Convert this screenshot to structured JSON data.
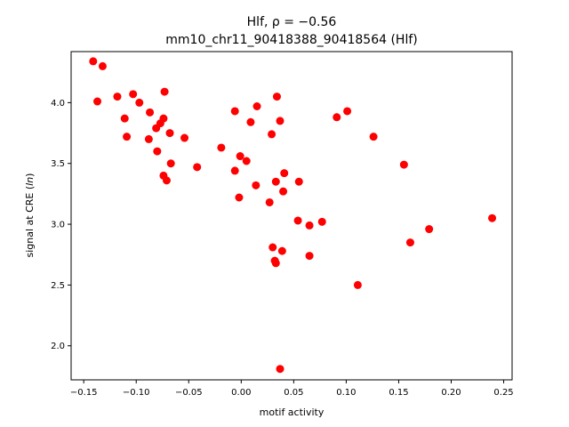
{
  "chart_data": {
    "type": "scatter",
    "title_line1": "Hlf, ρ = −0.56",
    "title_line2": "mm10_chr11_90418388_90418564 (Hlf)",
    "xlabel": "motif activity",
    "ylabel_main": "signal at CRE (",
    "ylabel_italic": "ln",
    "ylabel_end": ")",
    "xlim": [
      -0.162,
      0.258
    ],
    "ylim": [
      1.72,
      4.42
    ],
    "xticks": [
      -0.15,
      -0.1,
      -0.05,
      0.0,
      0.05,
      0.1,
      0.15,
      0.2,
      0.25
    ],
    "xtick_labels": [
      "−0.15",
      "−0.10",
      "−0.05",
      "0.00",
      "0.05",
      "0.10",
      "0.15",
      "0.20",
      "0.25"
    ],
    "yticks": [
      2.0,
      2.5,
      3.0,
      3.5,
      4.0
    ],
    "ytick_labels": [
      "2.0",
      "2.5",
      "3.0",
      "3.5",
      "4.0"
    ],
    "marker_color": "#ff0000",
    "points": [
      {
        "x": -0.141,
        "y": 4.34
      },
      {
        "x": -0.132,
        "y": 4.3
      },
      {
        "x": -0.137,
        "y": 4.01
      },
      {
        "x": -0.118,
        "y": 4.05
      },
      {
        "x": -0.103,
        "y": 4.07
      },
      {
        "x": -0.097,
        "y": 4.0
      },
      {
        "x": -0.111,
        "y": 3.87
      },
      {
        "x": -0.109,
        "y": 3.72
      },
      {
        "x": -0.087,
        "y": 3.92
      },
      {
        "x": -0.077,
        "y": 3.83
      },
      {
        "x": -0.074,
        "y": 3.87
      },
      {
        "x": -0.073,
        "y": 4.09
      },
      {
        "x": -0.081,
        "y": 3.79
      },
      {
        "x": -0.088,
        "y": 3.7
      },
      {
        "x": -0.068,
        "y": 3.75
      },
      {
        "x": -0.08,
        "y": 3.6
      },
      {
        "x": -0.054,
        "y": 3.71
      },
      {
        "x": -0.067,
        "y": 3.5
      },
      {
        "x": -0.042,
        "y": 3.47
      },
      {
        "x": -0.074,
        "y": 3.4
      },
      {
        "x": -0.071,
        "y": 3.36
      },
      {
        "x": -0.019,
        "y": 3.63
      },
      {
        "x": -0.006,
        "y": 3.93
      },
      {
        "x": 0.009,
        "y": 3.84
      },
      {
        "x": 0.015,
        "y": 3.97
      },
      {
        "x": 0.034,
        "y": 4.05
      },
      {
        "x": 0.037,
        "y": 3.85
      },
      {
        "x": 0.029,
        "y": 3.74
      },
      {
        "x": -0.001,
        "y": 3.56
      },
      {
        "x": 0.005,
        "y": 3.52
      },
      {
        "x": -0.006,
        "y": 3.44
      },
      {
        "x": 0.041,
        "y": 3.42
      },
      {
        "x": 0.033,
        "y": 3.35
      },
      {
        "x": 0.014,
        "y": 3.32
      },
      {
        "x": 0.055,
        "y": 3.35
      },
      {
        "x": 0.04,
        "y": 3.27
      },
      {
        "x": -0.002,
        "y": 3.22
      },
      {
        "x": 0.027,
        "y": 3.18
      },
      {
        "x": 0.054,
        "y": 3.03
      },
      {
        "x": 0.065,
        "y": 2.99
      },
      {
        "x": 0.077,
        "y": 3.02
      },
      {
        "x": 0.03,
        "y": 2.81
      },
      {
        "x": 0.039,
        "y": 2.78
      },
      {
        "x": 0.032,
        "y": 2.7
      },
      {
        "x": 0.033,
        "y": 2.68
      },
      {
        "x": 0.065,
        "y": 2.74
      },
      {
        "x": 0.091,
        "y": 3.88
      },
      {
        "x": 0.101,
        "y": 3.93
      },
      {
        "x": 0.126,
        "y": 3.72
      },
      {
        "x": 0.155,
        "y": 3.49
      },
      {
        "x": 0.111,
        "y": 2.5
      },
      {
        "x": 0.161,
        "y": 2.85
      },
      {
        "x": 0.179,
        "y": 2.96
      },
      {
        "x": 0.239,
        "y": 3.05
      },
      {
        "x": 0.037,
        "y": 1.81
      }
    ]
  }
}
